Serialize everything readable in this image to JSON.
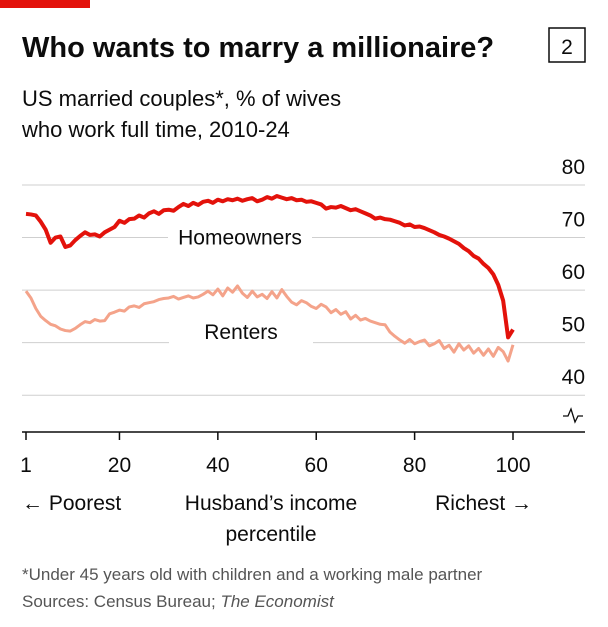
{
  "chart_data": {
    "type": "line",
    "title": "Who wants to marry a millionaire?",
    "chart_number": "2",
    "subtitle_lines": [
      "US married couples*, % of wives",
      "who work full time, 2010-24"
    ],
    "x_label_lines": [
      "Husband’s income",
      "percentile"
    ],
    "x_left_note": "← Poorest",
    "x_right_note": "Richest →",
    "footnote": "*Under 45 years old with children and a working male partner",
    "source": "Sources: Census Bureau;",
    "source_italic": "The Economist",
    "x": [
      1,
      2,
      3,
      4,
      5,
      6,
      7,
      8,
      9,
      10,
      11,
      12,
      13,
      14,
      15,
      16,
      17,
      18,
      19,
      20,
      21,
      22,
      23,
      24,
      25,
      26,
      27,
      28,
      29,
      30,
      31,
      32,
      33,
      34,
      35,
      36,
      37,
      38,
      39,
      40,
      41,
      42,
      43,
      44,
      45,
      46,
      47,
      48,
      49,
      50,
      51,
      52,
      53,
      54,
      55,
      56,
      57,
      58,
      59,
      60,
      61,
      62,
      63,
      64,
      65,
      66,
      67,
      68,
      69,
      70,
      71,
      72,
      73,
      74,
      75,
      76,
      77,
      78,
      79,
      80,
      81,
      82,
      83,
      84,
      85,
      86,
      87,
      88,
      89,
      90,
      91,
      92,
      93,
      94,
      95,
      96,
      97,
      98,
      99,
      100
    ],
    "series": [
      {
        "name": "Homeowners",
        "color": "#e3120b",
        "values": [
          74.5,
          74.4,
          74.2,
          73,
          71.5,
          69,
          70,
          70.2,
          68.2,
          68.5,
          69.5,
          70.3,
          71,
          70.5,
          70.6,
          70.2,
          71,
          71.5,
          72,
          73.2,
          72.8,
          73.5,
          73.6,
          74.2,
          73.8,
          74.6,
          75,
          74.5,
          75.2,
          75.3,
          75.1,
          75.8,
          76.4,
          76,
          76.6,
          76.2,
          76.8,
          77,
          76.6,
          77.2,
          76.9,
          77.3,
          77.1,
          77.4,
          77,
          77.3,
          77.5,
          76.9,
          77.2,
          77.7,
          77.4,
          77.9,
          77.6,
          77.3,
          77.5,
          77.1,
          77.2,
          76.8,
          76.9,
          76.6,
          76.3,
          75.5,
          75.8,
          75.7,
          76,
          75.6,
          75.2,
          75.4,
          75,
          74.6,
          74.2,
          73.6,
          73.8,
          73.5,
          73.4,
          73.1,
          72.8,
          72.3,
          72.5,
          72,
          72.1,
          71.8,
          71.4,
          71,
          70.5,
          70.2,
          69.8,
          69.3,
          68.8,
          68,
          67.4,
          66.5,
          66,
          65,
          64.2,
          63,
          61,
          58,
          51,
          52.5
        ]
      },
      {
        "name": "Renters",
        "color": "#f4a38a",
        "values": [
          59.8,
          58.5,
          56.5,
          55,
          54.2,
          53.5,
          53.2,
          52.6,
          52.3,
          52.2,
          52.7,
          53.4,
          54,
          53.8,
          54.4,
          54.1,
          54.2,
          55.5,
          55.8,
          56.2,
          56,
          56.8,
          57,
          56.7,
          57.4,
          57.6,
          57.8,
          58.2,
          58.4,
          58.5,
          58.8,
          58.3,
          58.6,
          58.9,
          58.5,
          58.7,
          59.2,
          59.8,
          59.1,
          60.2,
          58.9,
          60.4,
          59.6,
          60.8,
          59.4,
          58.6,
          59.8,
          58.7,
          59.2,
          58.4,
          59.7,
          58.5,
          60.1,
          58.8,
          57.7,
          57.2,
          58,
          57.6,
          56.9,
          56.5,
          57.3,
          56.8,
          55.7,
          56.3,
          55.4,
          55.9,
          54.5,
          55.2,
          54.3,
          54.6,
          54.1,
          53.8,
          53.5,
          53.4,
          52,
          51.2,
          50.5,
          49.9,
          50.6,
          49.8,
          50.2,
          50.5,
          49.4,
          49.8,
          50.4,
          48.9,
          49.5,
          48.2,
          49.8,
          48.6,
          49.4,
          48,
          48.9,
          47.6,
          48.8,
          47.4,
          49.1,
          48.3,
          46.5,
          49.6
        ]
      }
    ],
    "xlim": [
      1,
      100
    ],
    "xticks": [
      1,
      20,
      40,
      60,
      80,
      100
    ],
    "ylim": [
      33,
      80
    ],
    "yticks": [
      40,
      50,
      60,
      70,
      80
    ],
    "grid": true
  }
}
